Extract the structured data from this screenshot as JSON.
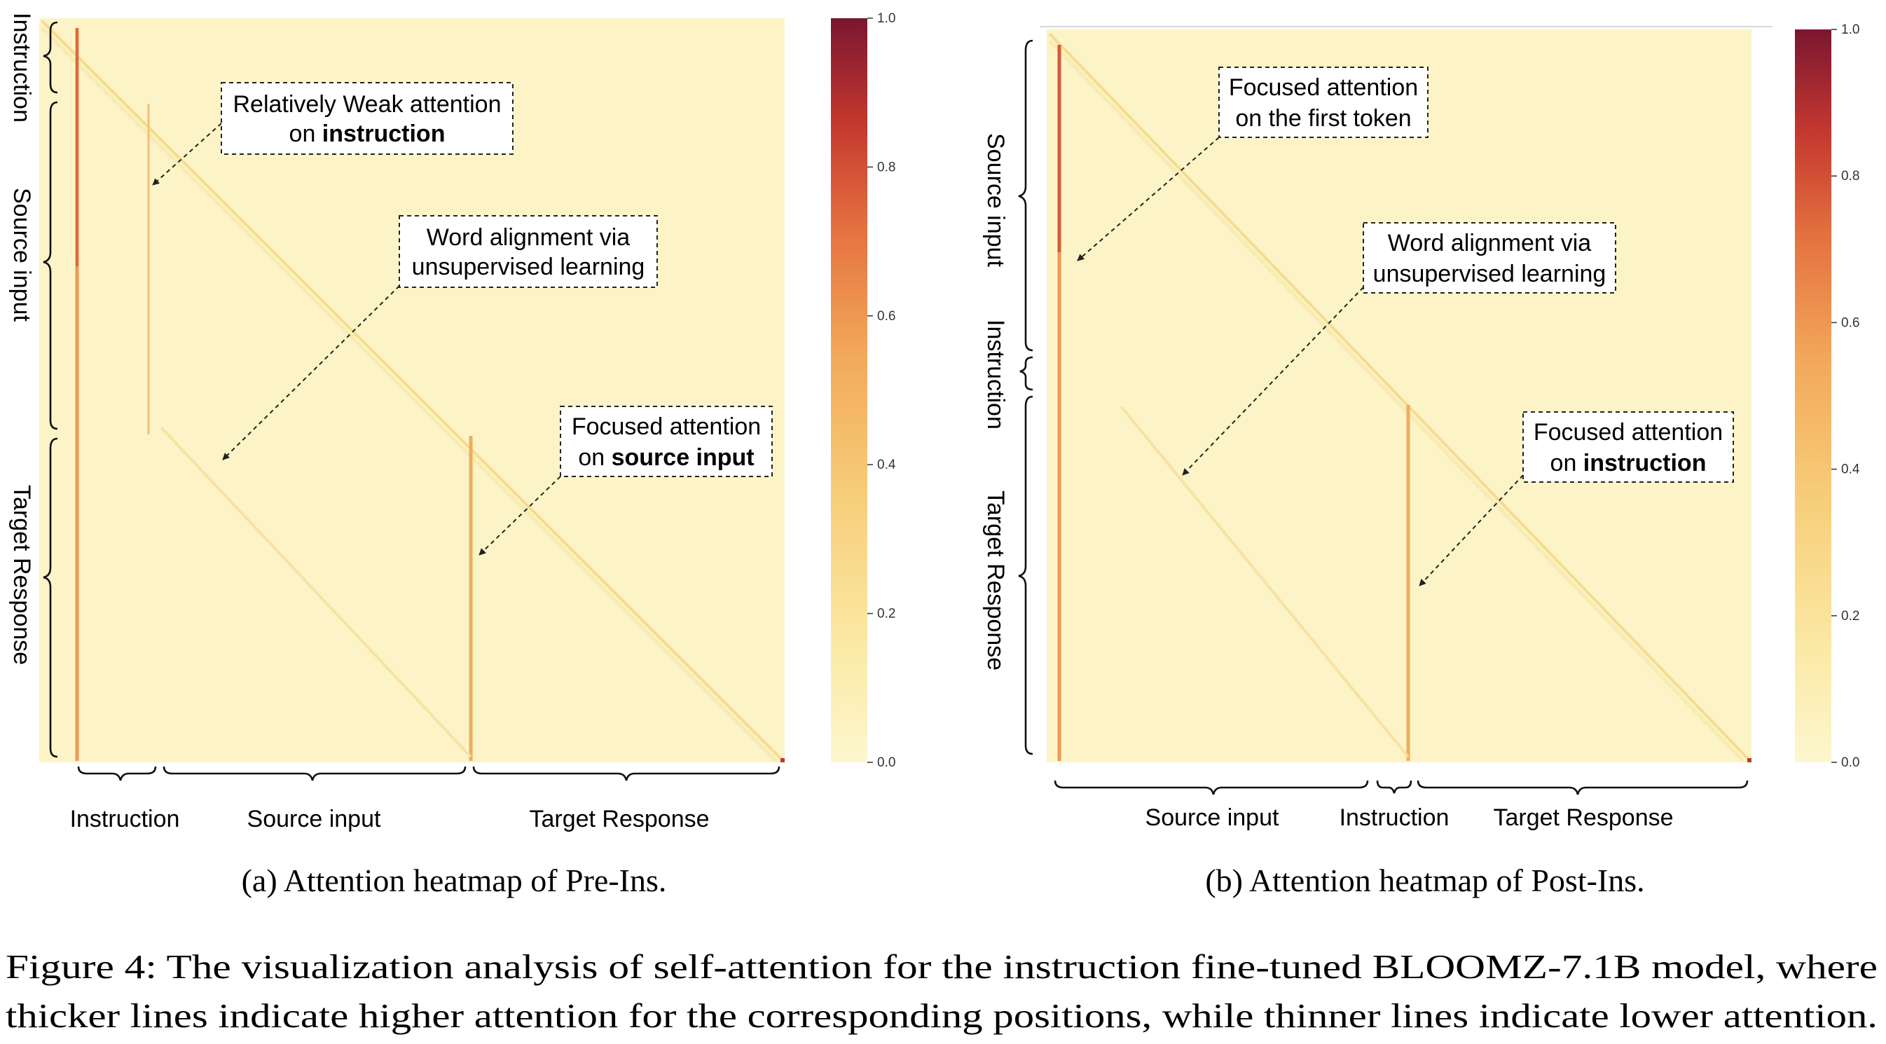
{
  "chart_data": [
    {
      "type": "heatmap",
      "caption": "(a) Attention heatmap of Pre-Ins.",
      "colorbar": {
        "range": [
          0.0,
          1.0
        ],
        "ticks": [
          "1.0",
          "0.8",
          "0.6",
          "0.4",
          "0.2",
          "0.0"
        ]
      },
      "colors": {
        "low": "#fdf7cf",
        "mid": "#f2a85a",
        "high": "#7a1630"
      },
      "segments": [
        {
          "label": "Instruction",
          "from": 0.0,
          "to": 0.11
        },
        {
          "label": "Source input",
          "from": 0.11,
          "to": 0.54
        },
        {
          "label": "Target Response",
          "from": 0.54,
          "to": 1.0
        }
      ],
      "annotations": [
        {
          "line1": "Relatively Weak attention",
          "line2_prefix": "on ",
          "line2_bold": "instruction"
        },
        {
          "line1": "Word alignment via",
          "line2_prefix": "",
          "line2_bold": "",
          "line2_plain": "unsupervised learning"
        },
        {
          "line1": "Focused attention",
          "line2_prefix": "on ",
          "line2_bold": "source input"
        }
      ]
    },
    {
      "type": "heatmap",
      "caption": "(b) Attention heatmap of Post-Ins.",
      "colorbar": {
        "range": [
          0.0,
          1.0
        ],
        "ticks": [
          "1.0",
          "0.8",
          "0.6",
          "0.4",
          "0.2",
          "0.0"
        ]
      },
      "colors": {
        "low": "#fdf7cf",
        "mid": "#f2a85a",
        "high": "#7a1630"
      },
      "segments": [
        {
          "label": "Source input",
          "from": 0.0,
          "to": 0.46
        },
        {
          "label": "Instruction",
          "from": 0.46,
          "to": 0.52
        },
        {
          "label": "Target Response",
          "from": 0.52,
          "to": 1.0
        }
      ],
      "annotations": [
        {
          "line1": "Focused attention",
          "line2_prefix": "",
          "line2_bold": "",
          "line2_plain": "on the first token"
        },
        {
          "line1": "Word alignment via",
          "line2_prefix": "",
          "line2_bold": "",
          "line2_plain": "unsupervised learning"
        },
        {
          "line1": "Focused attention",
          "line2_prefix": "on ",
          "line2_bold": "instruction"
        }
      ]
    }
  ],
  "figure_caption": {
    "line1": "Figure 4: The visualization analysis of self-attention for the instruction fine-tuned BLOOMZ-7.1B model, where",
    "line2": "thicker lines indicate higher attention for the corresponding positions, while thinner lines indicate lower attention."
  }
}
